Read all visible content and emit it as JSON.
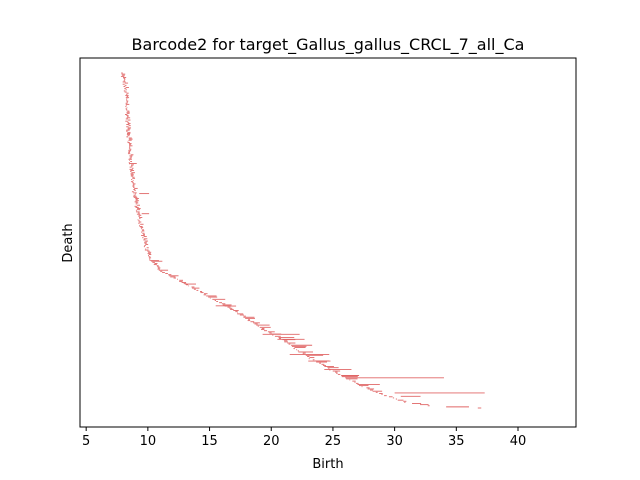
{
  "chart_data": {
    "type": "barcode",
    "title": "Barcode2 for target_Gallus_gallus_CRCL_7_all_Ca",
    "xlabel": "Birth",
    "ylabel": "Death",
    "xlim": [
      4.5,
      44.7
    ],
    "xticks": [
      5,
      10,
      15,
      20,
      25,
      30,
      35,
      40
    ],
    "yticks_shown": false,
    "grid": false,
    "bar_color": "#e06666",
    "bar_count_approx": 300,
    "front": [
      [
        7.8,
        0.0
      ],
      [
        8.0,
        0.02
      ],
      [
        8.2,
        0.07
      ],
      [
        8.3,
        0.15
      ],
      [
        8.5,
        0.25
      ],
      [
        8.8,
        0.35
      ],
      [
        9.2,
        0.43
      ],
      [
        9.6,
        0.49
      ],
      [
        10.0,
        0.55
      ],
      [
        11.0,
        0.59
      ],
      [
        13.0,
        0.63
      ],
      [
        15.0,
        0.67
      ],
      [
        17.0,
        0.71
      ],
      [
        19.0,
        0.76
      ],
      [
        21.0,
        0.8
      ],
      [
        23.0,
        0.85
      ],
      [
        25.0,
        0.89
      ],
      [
        27.0,
        0.93
      ],
      [
        29.0,
        0.96
      ],
      [
        31.0,
        0.985
      ],
      [
        33.0,
        0.995
      ],
      [
        36.7,
        1.0
      ]
    ],
    "long_bars": [
      {
        "birth": 8.5,
        "death_rank": 0.27,
        "length": 0.6
      },
      {
        "birth": 9.3,
        "death_rank": 0.36,
        "length": 0.8
      },
      {
        "birth": 9.5,
        "death_rank": 0.42,
        "length": 0.6
      },
      {
        "birth": 10.2,
        "death_rank": 0.56,
        "length": 0.7
      },
      {
        "birth": 13.0,
        "death_rank": 0.63,
        "length": 0.9
      },
      {
        "birth": 15.5,
        "death_rank": 0.695,
        "length": 1.2
      },
      {
        "birth": 19.3,
        "death_rank": 0.78,
        "length": 3.0
      },
      {
        "birth": 20.5,
        "death_rank": 0.795,
        "length": 2.2
      },
      {
        "birth": 21.5,
        "death_rank": 0.84,
        "length": 3.2
      },
      {
        "birth": 23.0,
        "death_rank": 0.86,
        "length": 1.8
      },
      {
        "birth": 24.3,
        "death_rank": 0.885,
        "length": 2.2
      },
      {
        "birth": 26.0,
        "death_rank": 0.91,
        "length": 8.0
      },
      {
        "birth": 27.0,
        "death_rank": 0.93,
        "length": 1.8
      },
      {
        "birth": 30.0,
        "death_rank": 0.955,
        "length": 7.3
      },
      {
        "birth": 30.5,
        "death_rank": 0.965,
        "length": 1.6
      }
    ]
  }
}
